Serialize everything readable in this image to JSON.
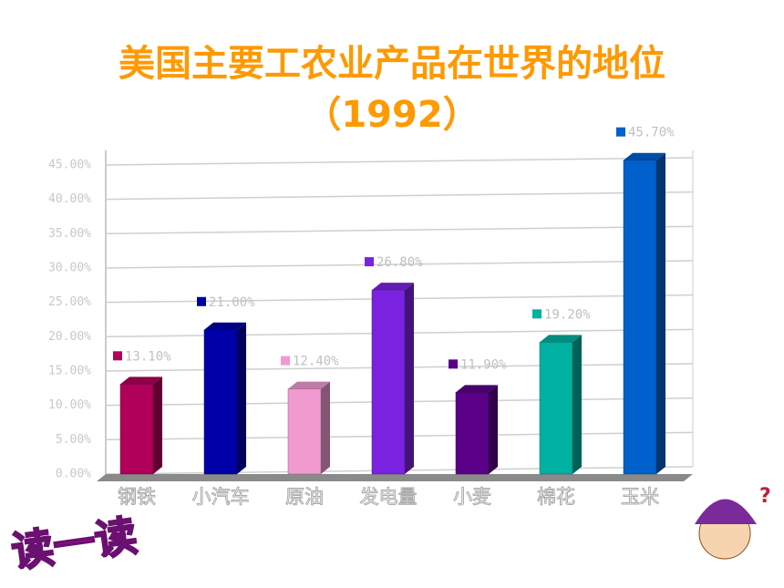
{
  "chart_data": {
    "type": "bar",
    "title": "美国主要工农业产品在世界的地位",
    "subtitle": "（1992）",
    "badge": "读一读",
    "categories": [
      "钢铁",
      "小汽车",
      "原油",
      "发电量",
      "小麦",
      "棉花",
      "玉米"
    ],
    "values": [
      13.1,
      21.0,
      12.4,
      26.8,
      11.9,
      19.2,
      45.7
    ],
    "value_labels": [
      "13.10%",
      "21.00%",
      "12.40%",
      "26.80%",
      "11.90%",
      "19.20%",
      "45.70%"
    ],
    "colors": [
      "#b0005a",
      "#0000a8",
      "#f09ad0",
      "#7a22e0",
      "#5a0088",
      "#00b0a0",
      "#0060cc"
    ],
    "ylim": [
      0,
      45
    ],
    "yticks": [
      {
        "value": 0,
        "label": "0.00%"
      },
      {
        "value": 5,
        "label": "5.00%"
      },
      {
        "value": 10,
        "label": "10.00%"
      },
      {
        "value": 15,
        "label": "15.00%"
      },
      {
        "value": 20,
        "label": "20.00%"
      },
      {
        "value": 25,
        "label": "25.00%"
      },
      {
        "value": 30,
        "label": "30.00%"
      },
      {
        "value": 35,
        "label": "35.00%"
      },
      {
        "value": 40,
        "label": "40.00%"
      },
      {
        "value": 45,
        "label": "45.00%"
      }
    ],
    "grid": true
  }
}
